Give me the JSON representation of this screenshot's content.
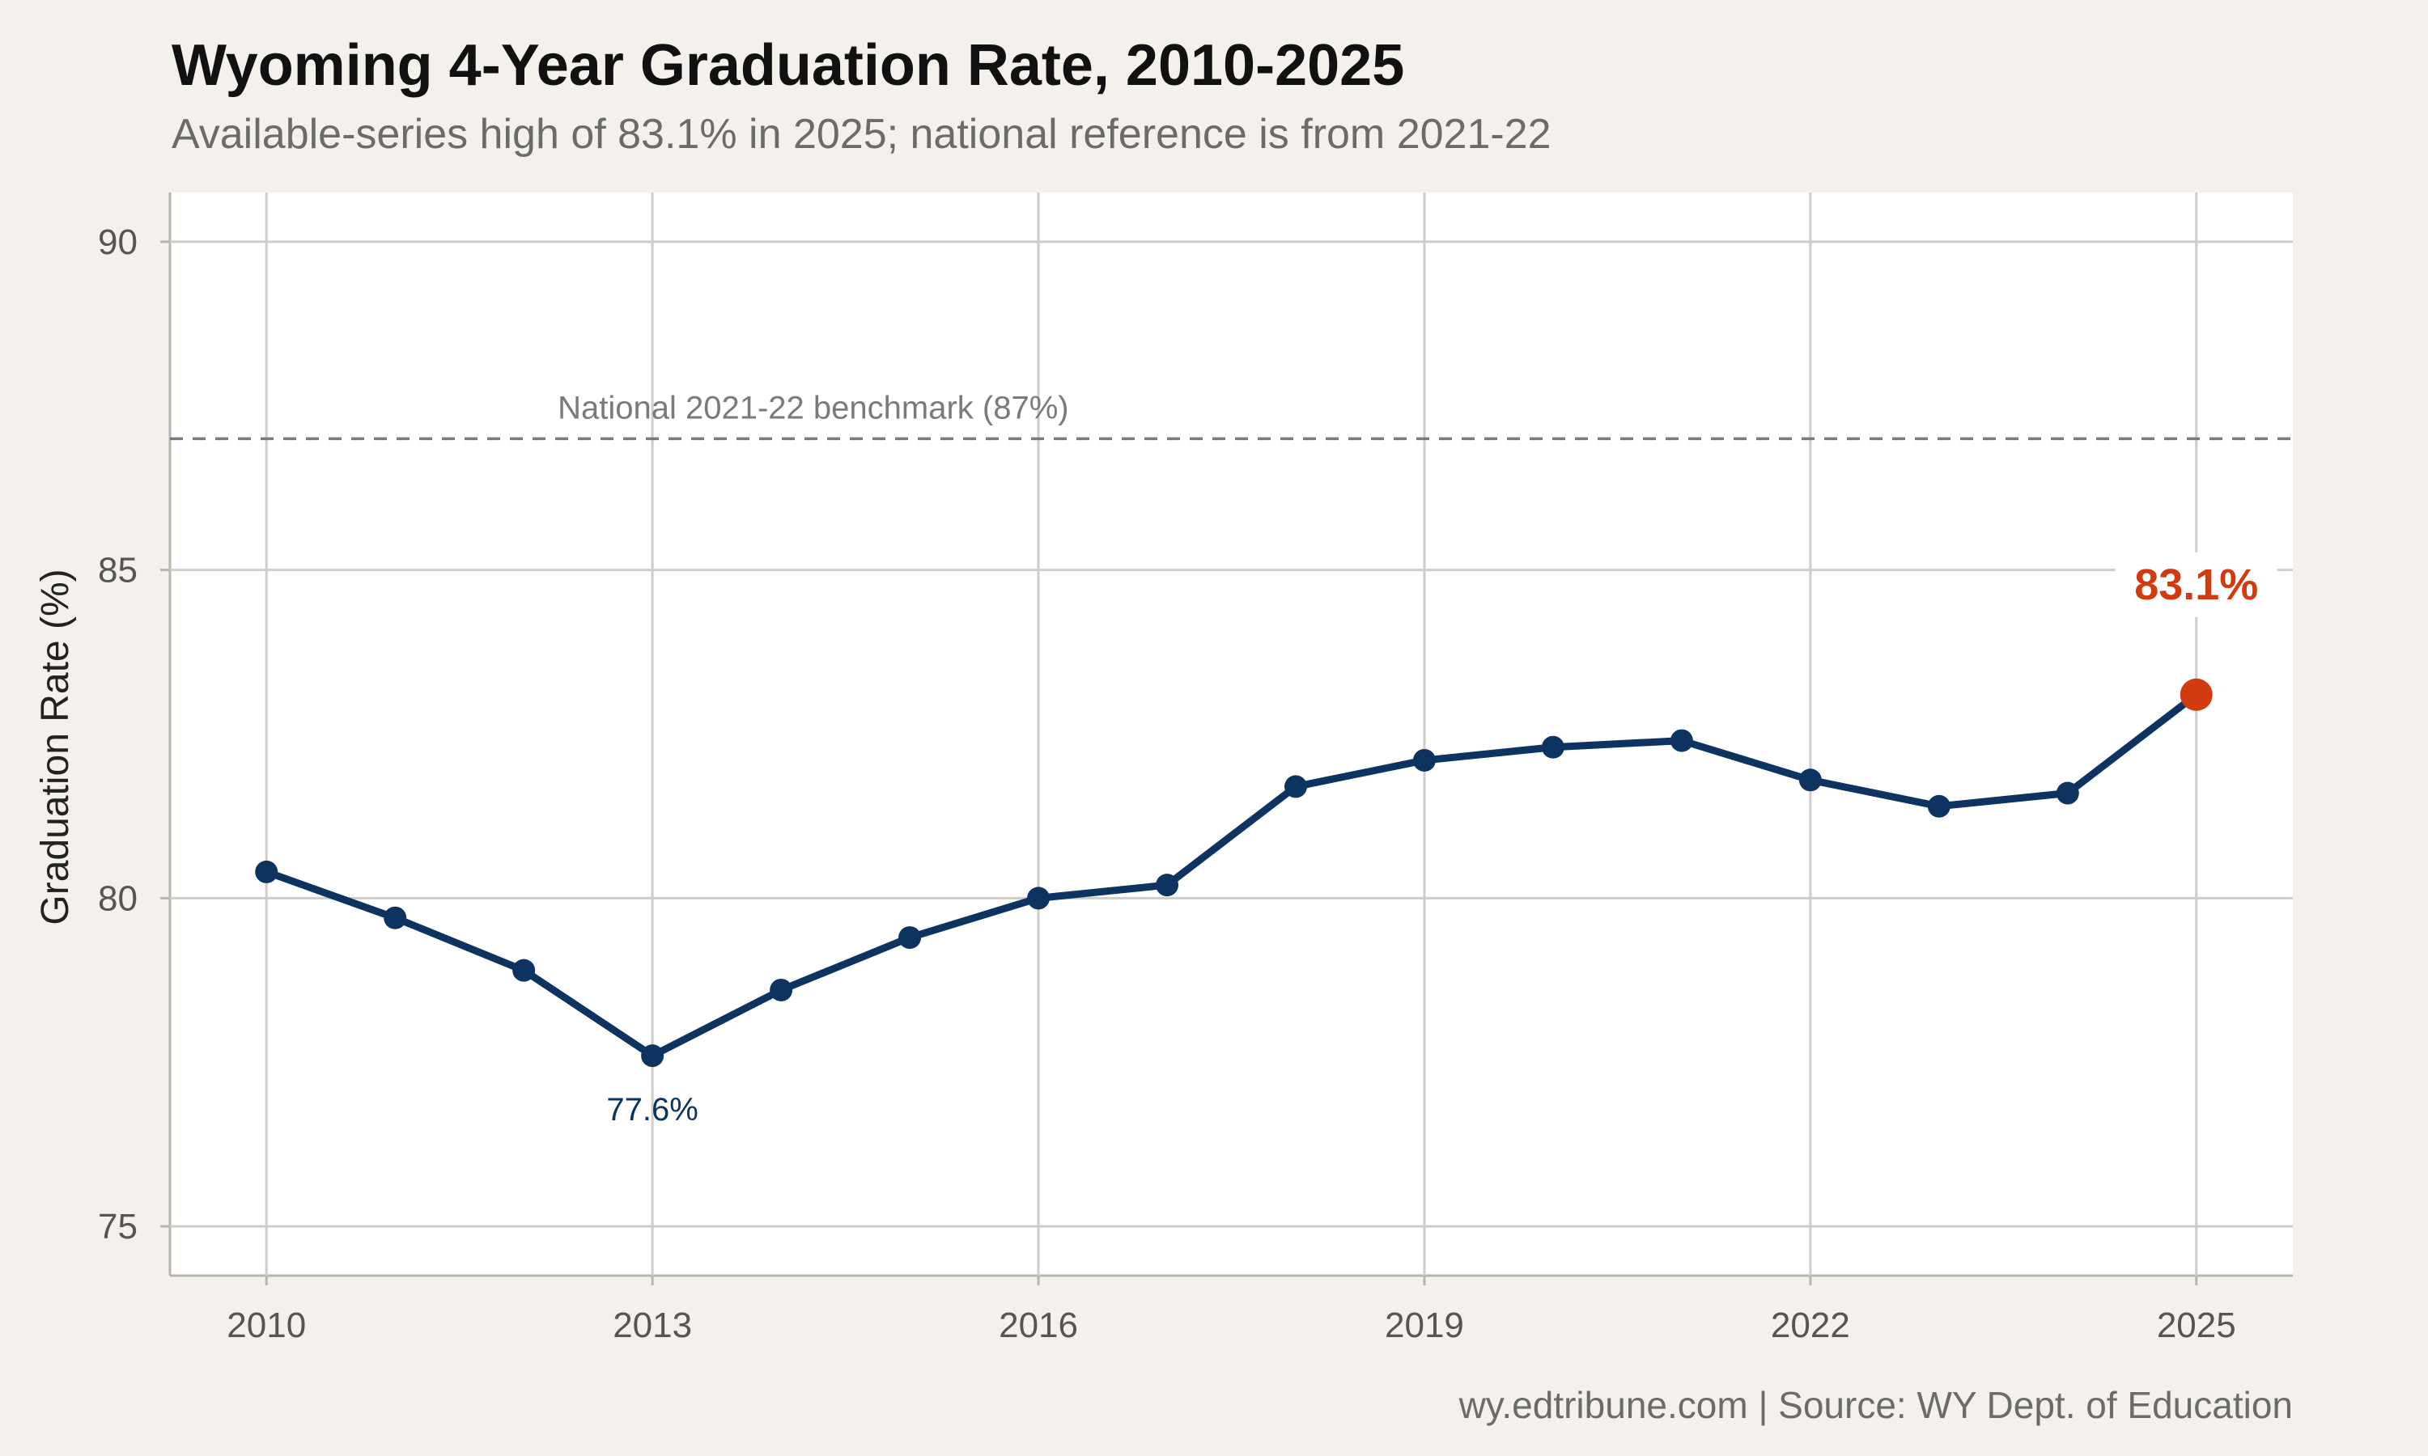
{
  "chart_data": {
    "type": "line",
    "title": "Wyoming 4-Year Graduation Rate, 2010-2025",
    "subtitle": "Available-series high of 83.1% in 2025; national reference is from 2021-22",
    "ylabel": "Graduation Rate (%)",
    "xlabel": "",
    "caption": "wy.edtribune.com | Source: WY Dept. of Education",
    "x": [
      2010,
      2011,
      2012,
      2013,
      2014,
      2015,
      2016,
      2017,
      2018,
      2019,
      2020,
      2021,
      2022,
      2023,
      2024,
      2025
    ],
    "series": [
      {
        "values": [
          80.4,
          79.7,
          78.9,
          77.6,
          78.6,
          79.4,
          80.0,
          80.2,
          81.7,
          82.1,
          82.3,
          82.4,
          81.8,
          81.4,
          81.6,
          83.1
        ],
        "color": "#0d3461"
      }
    ],
    "x_ticks": [
      2010,
      2013,
      2016,
      2019,
      2022,
      2025
    ],
    "y_ticks": [
      75,
      80,
      85,
      90
    ],
    "xlim": [
      2009.25,
      2025.75
    ],
    "ylim": [
      74.25,
      90.75
    ],
    "grid": true,
    "reference_line": {
      "value": 87,
      "label": "National 2021-22 benchmark (87%)",
      "style": "dashed",
      "color": "#7a7a7a"
    },
    "annotations": [
      {
        "x": 2013,
        "y": 77.6,
        "text": "77.6%",
        "color": "#0d3461"
      },
      {
        "x": 2025,
        "y": 83.1,
        "text": "83.1%",
        "color": "#d23a0f"
      }
    ],
    "highlight_color": "#d23a0f"
  }
}
